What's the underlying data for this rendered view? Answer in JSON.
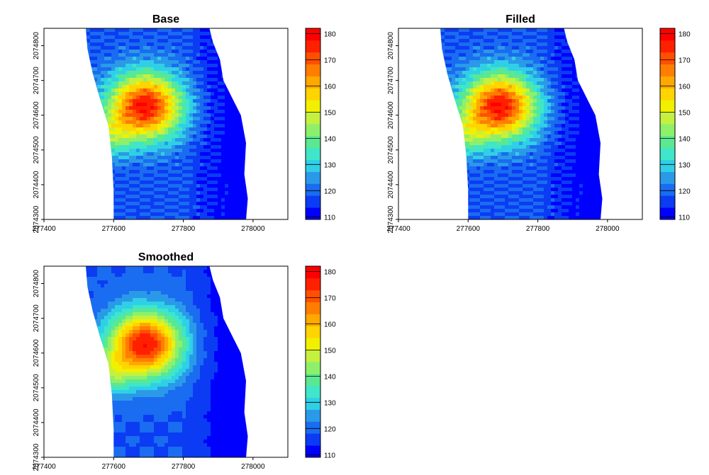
{
  "figure": {
    "layout": "2x2 grid, bottom-right empty",
    "background": "#ffffff"
  },
  "palette": [
    "#0000ff",
    "#0b3cf3",
    "#1a6cf0",
    "#2a9ae8",
    "#2fd0e6",
    "#3fe6c8",
    "#5ae890",
    "#8ef06a",
    "#c4f040",
    "#f0f000",
    "#ffd400",
    "#ffa800",
    "#ff7e00",
    "#ff5000",
    "#ff2000",
    "#ff0000"
  ],
  "chart_data": [
    {
      "type": "heatmap",
      "title": "Base",
      "xlabel": "",
      "ylabel": "",
      "x_ticks": [
        "277400",
        "277600",
        "277800",
        "278000"
      ],
      "y_ticks": [
        "2074300",
        "2074400",
        "2074500",
        "2074600",
        "2074700",
        "2074800"
      ],
      "xlim": [
        277400,
        278100
      ],
      "ylim": [
        2074300,
        2074850
      ],
      "value_range": [
        109,
        182
      ],
      "colorbar_ticks": [
        "110",
        "120",
        "130",
        "140",
        "150",
        "160",
        "170",
        "180"
      ],
      "grid": false,
      "legend_position": "right"
    },
    {
      "type": "heatmap",
      "title": "Filled",
      "xlabel": "",
      "ylabel": "",
      "x_ticks": [
        "277400",
        "277600",
        "277800",
        "278000"
      ],
      "y_ticks": [
        "2074300",
        "2074400",
        "2074500",
        "2074600",
        "2074700",
        "2074800"
      ],
      "xlim": [
        277400,
        278100
      ],
      "ylim": [
        2074300,
        2074850
      ],
      "value_range": [
        109,
        182
      ],
      "colorbar_ticks": [
        "110",
        "120",
        "130",
        "140",
        "150",
        "160",
        "170",
        "180"
      ],
      "grid": false,
      "legend_position": "right"
    },
    {
      "type": "heatmap",
      "title": "Smoothed",
      "xlabel": "",
      "ylabel": "",
      "x_ticks": [
        "277400",
        "277600",
        "277800",
        "278000"
      ],
      "y_ticks": [
        "2074300",
        "2074400",
        "2074500",
        "2074600",
        "2074700",
        "2074800"
      ],
      "xlim": [
        277400,
        278100
      ],
      "ylim": [
        2074300,
        2074850
      ],
      "value_range": [
        109,
        182
      ],
      "colorbar_ticks": [
        "110",
        "120",
        "130",
        "140",
        "150",
        "160",
        "170",
        "180"
      ],
      "grid": false,
      "legend_position": "right"
    }
  ]
}
